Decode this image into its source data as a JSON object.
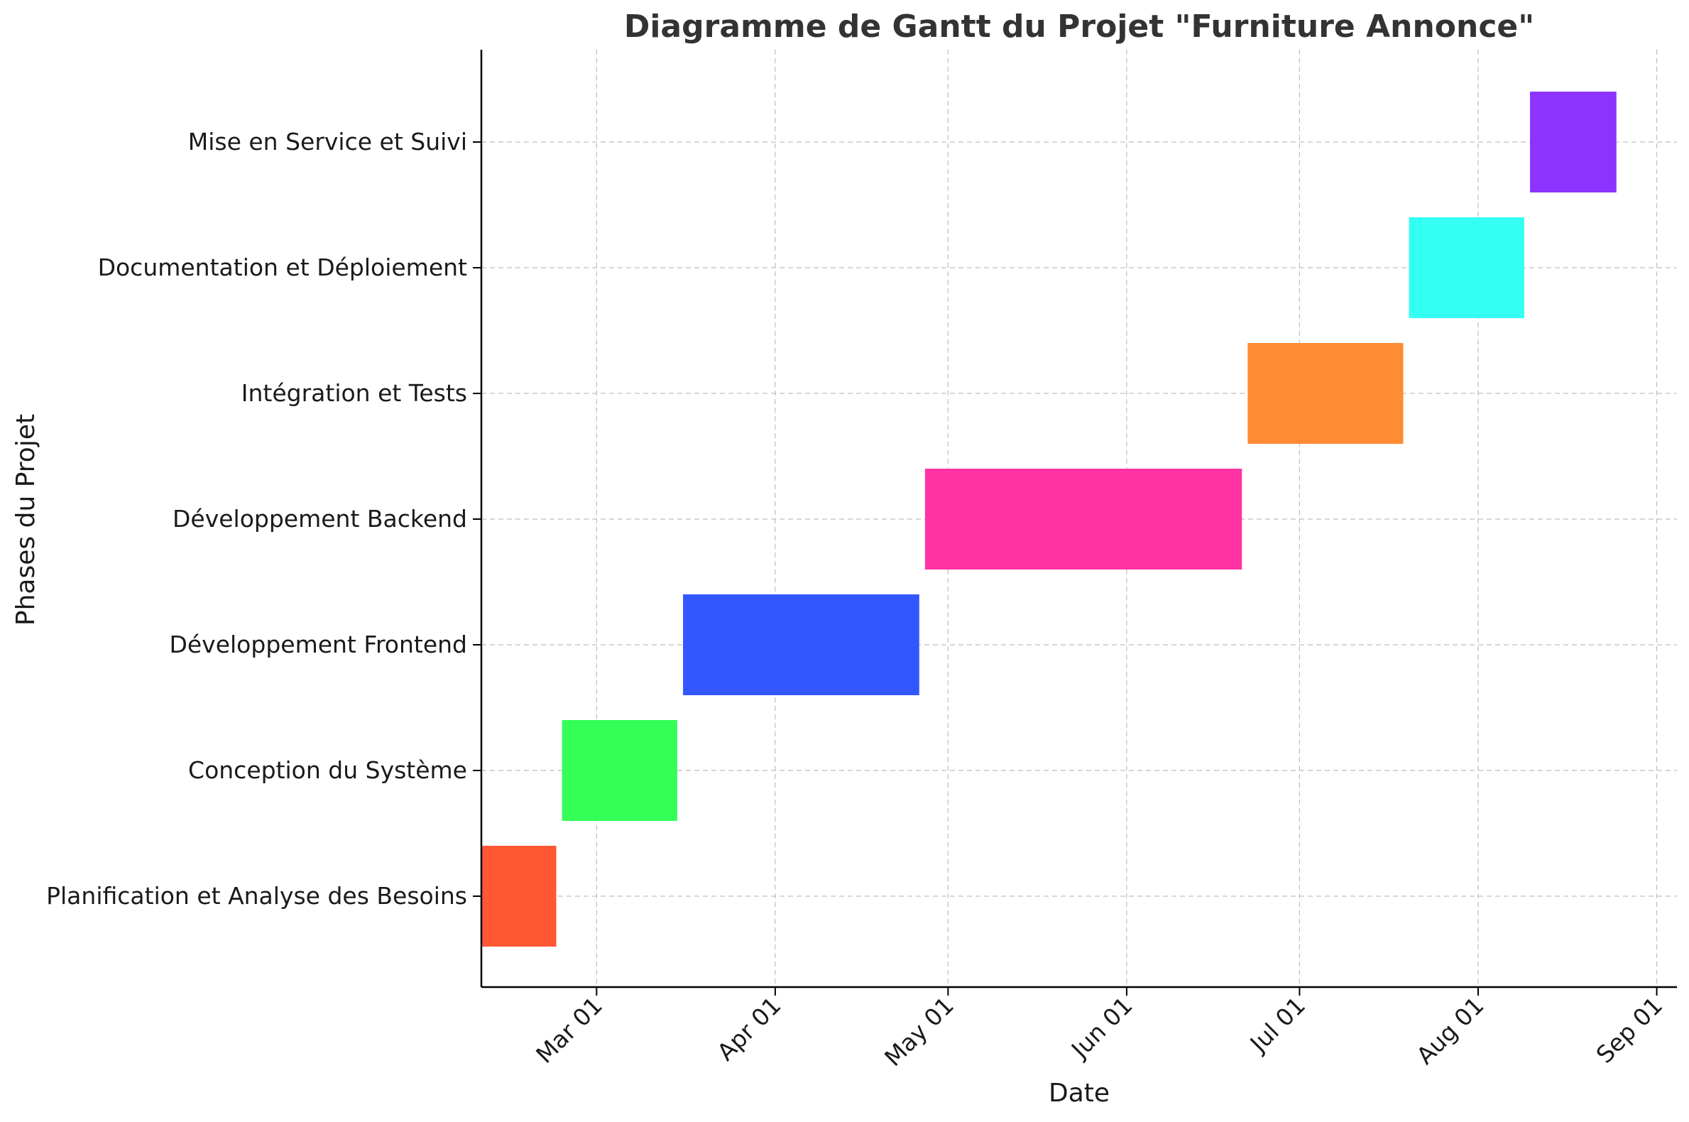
{
  "chart_data": {
    "type": "gantt",
    "title": "Diagramme de Gantt du Projet \"Furniture Annonce\"",
    "xlabel": "Date",
    "ylabel": "Phases du Projet",
    "x_ticks": [
      {
        "date": "2023-03-01",
        "label": "Mar 01"
      },
      {
        "date": "2023-04-01",
        "label": "Apr 01"
      },
      {
        "date": "2023-05-01",
        "label": "May 01"
      },
      {
        "date": "2023-06-01",
        "label": "Jun 01"
      },
      {
        "date": "2023-07-01",
        "label": "Jul 01"
      },
      {
        "date": "2023-08-01",
        "label": "Aug 01"
      },
      {
        "date": "2023-09-01",
        "label": "Sep 01"
      }
    ],
    "x_range": [
      "2023-02-09",
      "2023-09-01"
    ],
    "grid": true,
    "tasks": [
      {
        "name": "Planification et Analyse des Besoins",
        "start": "2023-02-09",
        "end": "2023-02-22",
        "color": "#ff5733"
      },
      {
        "name": "Conception du Système",
        "start": "2023-02-23",
        "end": "2023-03-15",
        "color": "#33ff57"
      },
      {
        "name": "Développement Frontend",
        "start": "2023-03-16",
        "end": "2023-04-26",
        "color": "#3357ff"
      },
      {
        "name": "Développement Backend",
        "start": "2023-04-27",
        "end": "2023-06-21",
        "color": "#ff33a1"
      },
      {
        "name": "Intégration et Tests",
        "start": "2023-06-22",
        "end": "2023-07-19",
        "color": "#ff8c33"
      },
      {
        "name": "Documentation et Déploiement",
        "start": "2023-07-20",
        "end": "2023-08-09",
        "color": "#33fff3"
      },
      {
        "name": "Mise en Service et Suivi",
        "start": "2023-08-10",
        "end": "2023-08-25",
        "color": "#8d33ff"
      }
    ]
  }
}
